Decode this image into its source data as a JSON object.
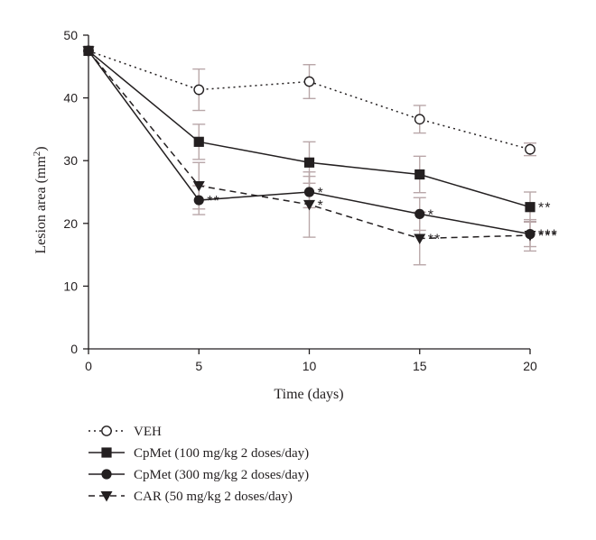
{
  "chart_data": {
    "type": "line",
    "xlabel": "Time (days)",
    "ylabel_main": "Lesion area (mm",
    "ylabel_sup": "2",
    "ylabel_close": ")",
    "xlim": [
      0,
      20
    ],
    "ylim": [
      0,
      50
    ],
    "x_ticks": [
      0,
      5,
      10,
      15,
      20
    ],
    "y_ticks": [
      0,
      10,
      20,
      30,
      40,
      50
    ],
    "x": [
      0,
      5,
      10,
      15,
      20
    ],
    "error_color": "#b9a7a9",
    "series": [
      {
        "name": "VEH",
        "marker": "open-circle",
        "line": "dotted",
        "values": [
          47.5,
          41.3,
          42.6,
          36.6,
          31.8
        ],
        "errors": [
          0,
          3.3,
          2.7,
          2.2,
          1.0
        ],
        "annotations": [
          "",
          "",
          "",
          "",
          ""
        ]
      },
      {
        "name": "CpMet (100 mg/kg 2 doses/day)",
        "marker": "square",
        "line": "solid",
        "values": [
          47.5,
          33.0,
          29.7,
          27.8,
          22.6
        ],
        "errors": [
          0,
          2.8,
          3.3,
          2.9,
          2.4
        ],
        "annotations": [
          "",
          "",
          "",
          "",
          "**"
        ]
      },
      {
        "name": "CpMet (300 mg/kg 2 doses/day)",
        "marker": "filled-circle",
        "line": "solid",
        "values": [
          47.5,
          23.7,
          25.0,
          21.5,
          18.3
        ],
        "errors": [
          0,
          2.3,
          2.5,
          2.6,
          2.0
        ],
        "annotations": [
          "",
          "**",
          "*",
          "*",
          "***"
        ]
      },
      {
        "name": "CAR (50 mg/kg 2 doses/day)",
        "marker": "triangle-down",
        "line": "dashed",
        "values": [
          47.5,
          26.0,
          23.0,
          17.6,
          18.1
        ],
        "errors": [
          0,
          3.7,
          5.2,
          4.2,
          2.5
        ],
        "annotations": [
          "",
          "",
          "*",
          "**",
          "***"
        ]
      }
    ]
  }
}
